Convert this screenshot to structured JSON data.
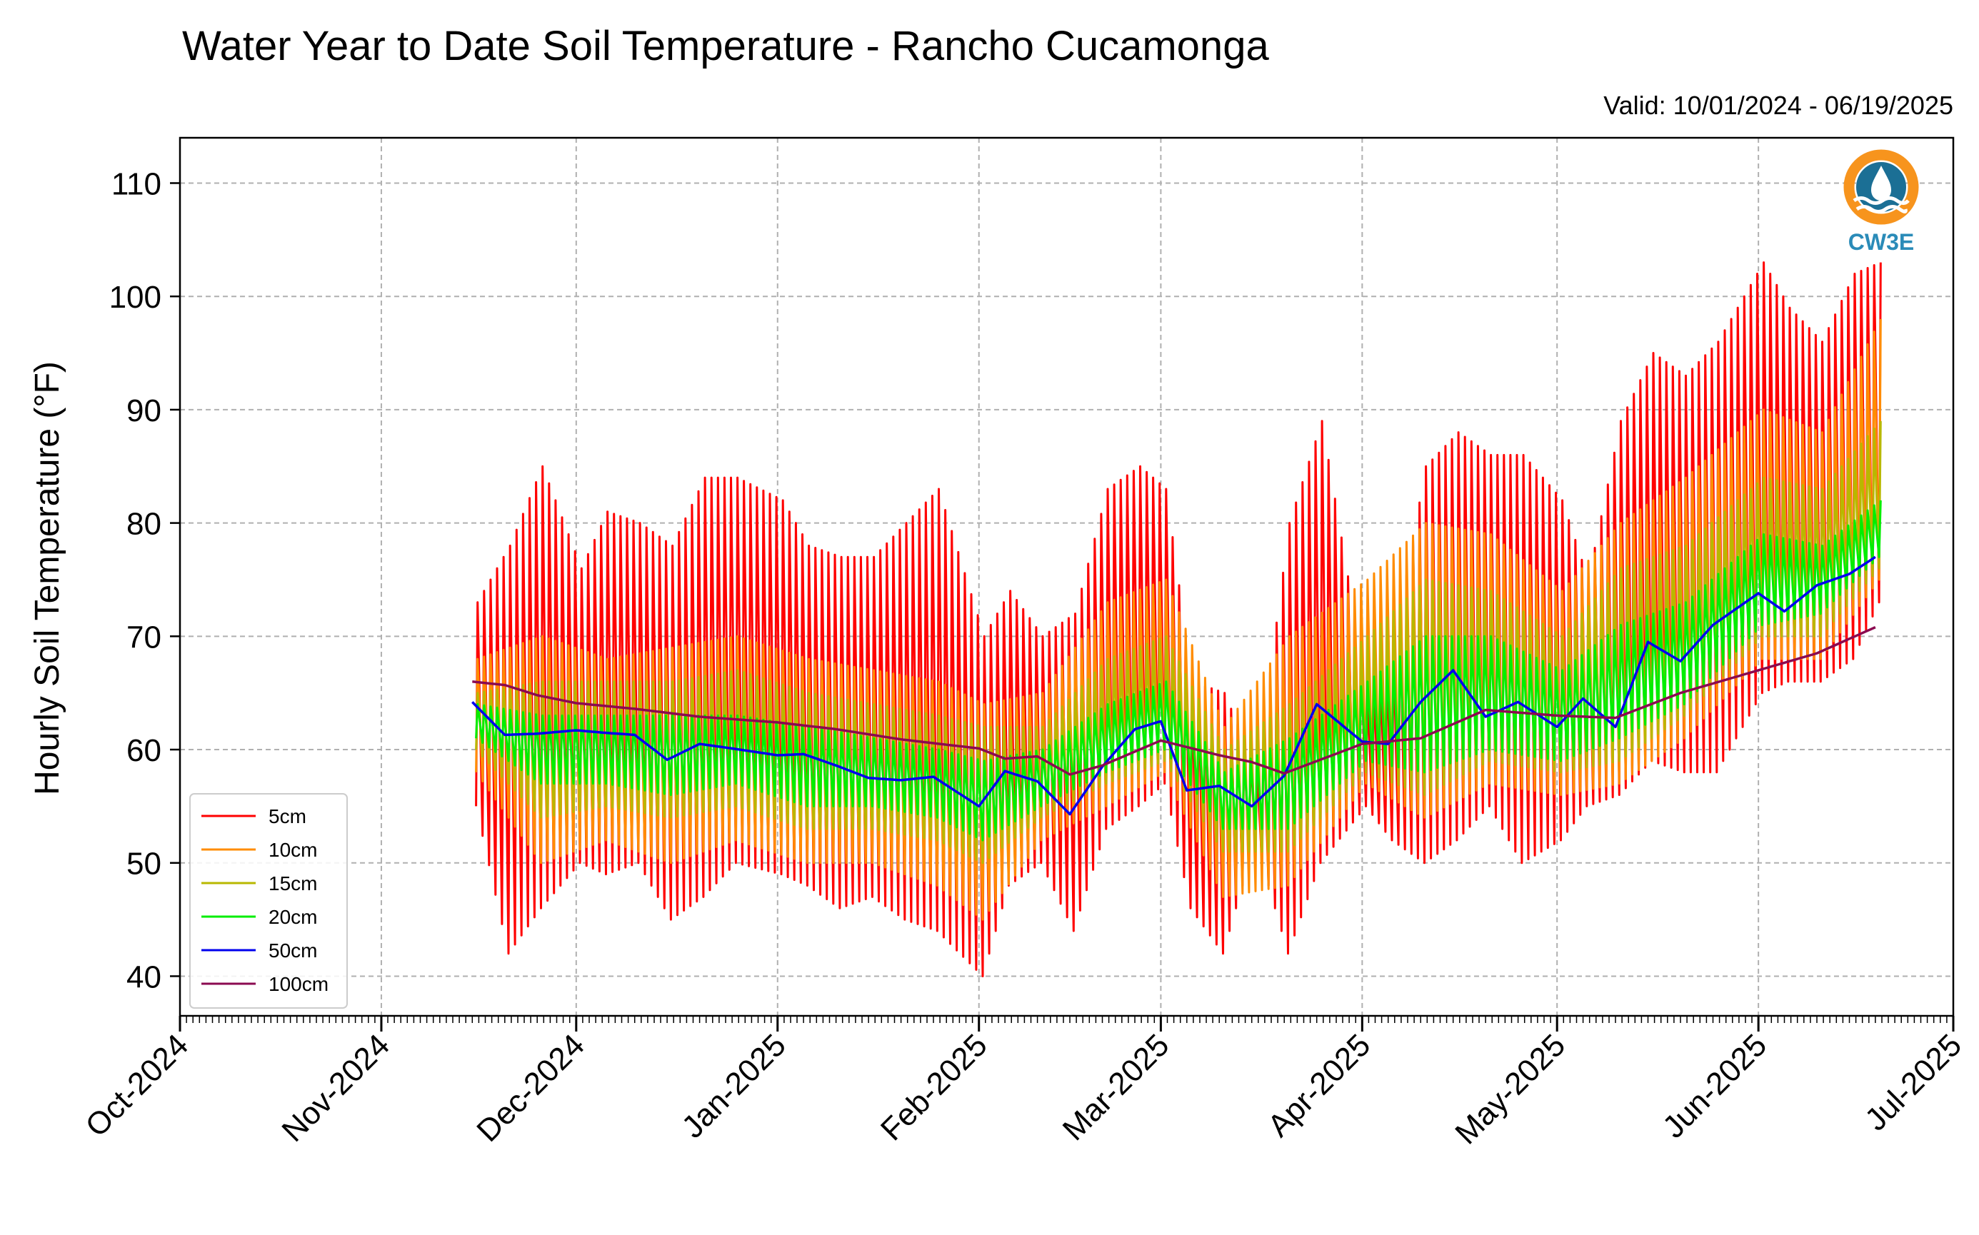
{
  "chart_data": {
    "type": "line",
    "title": "Water Year to Date Soil Temperature - Rancho Cucamonga",
    "subtitle": "Valid: 10/01/2024 - 06/19/2025",
    "xlabel": "",
    "ylabel": "Hourly Soil Temperature (°F)",
    "ylim": [
      36.5,
      114
    ],
    "yticks": [
      40,
      50,
      60,
      70,
      80,
      90,
      100,
      110
    ],
    "xlim": [
      "2024-10-01",
      "2025-07-01"
    ],
    "xticks": [
      {
        "date": "2024-10-01",
        "label": "Oct-2024"
      },
      {
        "date": "2024-11-01",
        "label": "Nov-2024"
      },
      {
        "date": "2024-12-01",
        "label": "Dec-2024"
      },
      {
        "date": "2025-01-01",
        "label": "Jan-2025"
      },
      {
        "date": "2025-02-01",
        "label": "Feb-2025"
      },
      {
        "date": "2025-03-01",
        "label": "Mar-2025"
      },
      {
        "date": "2025-04-01",
        "label": "Apr-2025"
      },
      {
        "date": "2025-05-01",
        "label": "May-2025"
      },
      {
        "date": "2025-06-01",
        "label": "Jun-2025"
      },
      {
        "date": "2025-07-01",
        "label": "Jul-2025"
      }
    ],
    "grid": true,
    "legend_position": "lower-left",
    "series": [
      {
        "name": "5cm",
        "color": "#ff0000",
        "kind": "band",
        "x": [
          "2024-11-15",
          "2024-11-20",
          "2024-11-25",
          "2024-12-01",
          "2024-12-05",
          "2024-12-10",
          "2024-12-15",
          "2024-12-20",
          "2024-12-25",
          "2025-01-01",
          "2025-01-05",
          "2025-01-10",
          "2025-01-15",
          "2025-01-20",
          "2025-01-25",
          "2025-02-01",
          "2025-02-05",
          "2025-02-10",
          "2025-02-15",
          "2025-02-20",
          "2025-02-25",
          "2025-03-01",
          "2025-03-05",
          "2025-03-10",
          "2025-03-15",
          "2025-03-20",
          "2025-03-25",
          "2025-04-01",
          "2025-04-05",
          "2025-04-10",
          "2025-04-15",
          "2025-04-20",
          "2025-04-25",
          "2025-05-01",
          "2025-05-05",
          "2025-05-10",
          "2025-05-15",
          "2025-05-20",
          "2025-05-25",
          "2025-06-01",
          "2025-06-05",
          "2025-06-10",
          "2025-06-15",
          "2025-06-19"
        ],
        "min": [
          55,
          42,
          46,
          50,
          49,
          50,
          45,
          47,
          50,
          49,
          48,
          46,
          47,
          45,
          44,
          40,
          48,
          50,
          44,
          53,
          55,
          57,
          46,
          42,
          52,
          42,
          50,
          55,
          52,
          50,
          52,
          55,
          50,
          52,
          55,
          56,
          59,
          58,
          58,
          65,
          66,
          66,
          68,
          73
        ],
        "max": [
          73,
          78,
          85,
          76,
          81,
          80,
          78,
          84,
          84,
          82,
          78,
          77,
          77,
          80,
          83,
          70,
          74,
          70,
          72,
          83,
          85,
          83,
          66,
          65,
          58,
          80,
          89,
          65,
          69,
          85,
          88,
          86,
          86,
          82,
          75,
          89,
          95,
          93,
          96,
          103,
          99,
          96,
          102,
          103
        ]
      },
      {
        "name": "10cm",
        "color": "#ff8c00",
        "kind": "band",
        "x": [
          "2024-11-15",
          "2024-11-25",
          "2024-12-05",
          "2024-12-15",
          "2024-12-25",
          "2025-01-05",
          "2025-01-15",
          "2025-01-25",
          "2025-02-01",
          "2025-02-10",
          "2025-02-20",
          "2025-03-01",
          "2025-03-10",
          "2025-03-20",
          "2025-04-01",
          "2025-04-10",
          "2025-04-20",
          "2025-05-01",
          "2025-05-10",
          "2025-05-20",
          "2025-06-01",
          "2025-06-10",
          "2025-06-19"
        ],
        "min": [
          58,
          50,
          52,
          50,
          52,
          50,
          50,
          48,
          45,
          52,
          55,
          58,
          47,
          48,
          57,
          54,
          57,
          56,
          57,
          61,
          68,
          68,
          75
        ],
        "max": [
          68,
          70,
          68,
          69,
          70,
          68,
          67,
          66,
          64,
          65,
          73,
          75,
          62,
          70,
          75,
          80,
          79,
          74,
          80,
          84,
          90,
          88,
          98
        ]
      },
      {
        "name": "15cm",
        "color": "#b8b800",
        "kind": "band",
        "x": [
          "2024-11-15",
          "2024-11-25",
          "2024-12-05",
          "2024-12-15",
          "2024-12-25",
          "2025-01-05",
          "2025-01-15",
          "2025-01-25",
          "2025-02-01",
          "2025-02-10",
          "2025-02-20",
          "2025-03-01",
          "2025-03-10",
          "2025-03-20",
          "2025-04-01",
          "2025-04-10",
          "2025-04-20",
          "2025-05-01",
          "2025-05-10",
          "2025-05-20",
          "2025-06-01",
          "2025-06-10",
          "2025-06-19"
        ],
        "min": [
          60,
          54,
          55,
          54,
          55,
          53,
          53,
          52,
          50,
          54,
          57,
          59,
          51,
          51,
          58,
          56,
          59,
          58,
          59,
          63,
          70,
          70,
          76
        ],
        "max": [
          65,
          66,
          66,
          66,
          67,
          65,
          64,
          63,
          62,
          62,
          68,
          70,
          60,
          64,
          70,
          75,
          74,
          70,
          76,
          78,
          84,
          83,
          89
        ]
      },
      {
        "name": "20cm",
        "color": "#00ee00",
        "kind": "band",
        "x": [
          "2024-11-15",
          "2024-11-25",
          "2024-12-05",
          "2024-12-15",
          "2024-12-25",
          "2025-01-05",
          "2025-01-15",
          "2025-01-25",
          "2025-02-01",
          "2025-02-10",
          "2025-02-20",
          "2025-03-01",
          "2025-03-10",
          "2025-03-20",
          "2025-04-01",
          "2025-04-10",
          "2025-04-20",
          "2025-05-01",
          "2025-05-10",
          "2025-05-20",
          "2025-06-01",
          "2025-06-10",
          "2025-06-19"
        ],
        "min": [
          61,
          57,
          57,
          56,
          57,
          55,
          55,
          54,
          52,
          55,
          58,
          60,
          53,
          53,
          59,
          58,
          60,
          59,
          61,
          64,
          71,
          72,
          77
        ],
        "max": [
          64,
          63,
          63,
          63,
          63,
          62,
          61,
          60,
          59,
          60,
          64,
          66,
          58,
          61,
          66,
          70,
          70,
          67,
          71,
          73,
          79,
          78,
          82
        ]
      },
      {
        "name": "50cm",
        "color": "#0000ee",
        "kind": "line",
        "x": [
          "2024-11-15",
          "2024-11-20",
          "2024-11-25",
          "2024-12-01",
          "2024-12-05",
          "2024-12-10",
          "2024-12-15",
          "2024-12-20",
          "2024-12-25",
          "2025-01-01",
          "2025-01-05",
          "2025-01-10",
          "2025-01-15",
          "2025-01-20",
          "2025-01-25",
          "2025-02-01",
          "2025-02-05",
          "2025-02-10",
          "2025-02-15",
          "2025-02-20",
          "2025-02-25",
          "2025-03-01",
          "2025-03-05",
          "2025-03-10",
          "2025-03-15",
          "2025-03-20",
          "2025-03-25",
          "2025-04-01",
          "2025-04-05",
          "2025-04-10",
          "2025-04-15",
          "2025-04-20",
          "2025-04-25",
          "2025-05-01",
          "2025-05-05",
          "2025-05-10",
          "2025-05-15",
          "2025-05-20",
          "2025-05-25",
          "2025-06-01",
          "2025-06-05",
          "2025-06-10",
          "2025-06-15",
          "2025-06-19"
        ],
        "values": [
          64.2,
          61.3,
          61.4,
          61.7,
          61.5,
          61.3,
          59.1,
          60.5,
          60.1,
          59.5,
          59.6,
          58.6,
          57.5,
          57.3,
          57.6,
          55.0,
          58.1,
          57.2,
          54.3,
          58.5,
          61.8,
          62.5,
          56.4,
          56.8,
          55.0,
          57.7,
          64.0,
          60.7,
          60.5,
          64.2,
          67.0,
          62.9,
          64.2,
          62.0,
          64.5,
          62.0,
          69.5,
          67.8,
          71.0,
          73.8,
          72.2,
          74.5,
          75.5,
          77.0
        ]
      },
      {
        "name": "100cm",
        "color": "#8b0a50",
        "kind": "line",
        "x": [
          "2024-11-15",
          "2024-11-20",
          "2024-11-25",
          "2024-12-01",
          "2024-12-10",
          "2024-12-20",
          "2025-01-01",
          "2025-01-10",
          "2025-01-20",
          "2025-02-01",
          "2025-02-05",
          "2025-02-10",
          "2025-02-15",
          "2025-02-20",
          "2025-03-01",
          "2025-03-10",
          "2025-03-15",
          "2025-03-20",
          "2025-04-01",
          "2025-04-10",
          "2025-04-20",
          "2025-05-01",
          "2025-05-10",
          "2025-05-20",
          "2025-06-01",
          "2025-06-10",
          "2025-06-19"
        ],
        "values": [
          66.0,
          65.7,
          64.8,
          64.1,
          63.6,
          62.9,
          62.4,
          61.8,
          60.9,
          60.1,
          59.2,
          59.4,
          57.8,
          58.6,
          60.8,
          59.5,
          58.9,
          57.9,
          60.5,
          61.0,
          63.5,
          63.0,
          62.8,
          65.0,
          67.0,
          68.5,
          70.8
        ]
      }
    ]
  },
  "logo": {
    "text": "CW3E",
    "ring_color": "#f7941d",
    "wave_color": "#1b6f95",
    "text_color": "#2a8bb8"
  }
}
